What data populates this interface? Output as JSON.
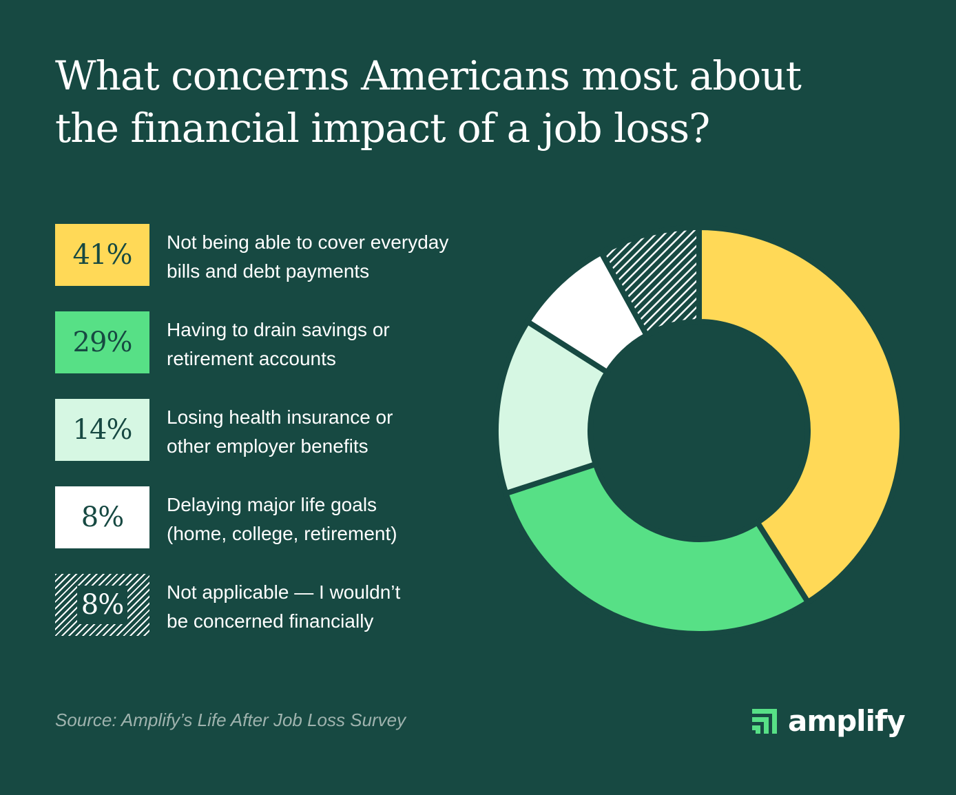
{
  "title_line1": "What concerns Americans most about",
  "title_line2": "the financial impact of a job loss?",
  "source": "Source: Amplify’s Life After Job Loss Survey",
  "logo_text": "amplify",
  "colors": {
    "background": "#174942",
    "yellow": "#FFD957",
    "green": "#57E086",
    "light_green": "#D6F7E3",
    "white": "#FFFFFF"
  },
  "chart_data": {
    "type": "pie",
    "donut": true,
    "categories": [
      "Not being able to cover everyday bills and debt payments",
      "Having to drain savings or retirement accounts",
      "Losing health insurance or other employer benefits",
      "Delaying major life goals (home, college, retirement)",
      "Not applicable — I wouldn’t be concerned financially"
    ],
    "values": [
      41,
      29,
      14,
      8,
      8
    ],
    "legend_placement": "left"
  },
  "legend": [
    {
      "pct": "41%",
      "line1": "Not being able to cover everyday",
      "line2": "bills and debt payments",
      "color": "#FFD957"
    },
    {
      "pct": "29%",
      "line1": "Having to drain savings or",
      "line2": "retirement accounts",
      "color": "#57E086"
    },
    {
      "pct": "14%",
      "line1": "Losing health insurance or",
      "line2": "other employer benefits",
      "color": "#D6F7E3"
    },
    {
      "pct": "8%",
      "line1": "Delaying major life goals",
      "line2": "(home, college, retirement)",
      "color": "#FFFFFF"
    },
    {
      "pct": "8%",
      "line1": "Not applicable — I wouldn’t",
      "line2": "be concerned financially",
      "color": "hatched"
    }
  ]
}
